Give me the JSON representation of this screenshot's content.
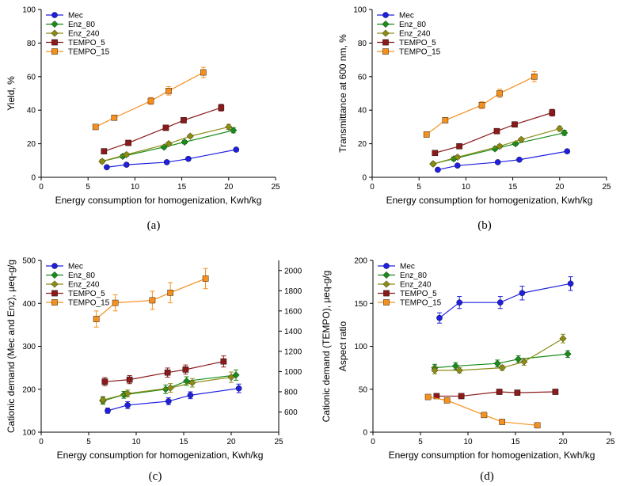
{
  "chart_data": [
    {
      "panel": "(a)",
      "type": "line",
      "xlabel": "Energy consumption for homogenization, Kwh/kg",
      "ylabel": "Yield, %",
      "xlim": [
        0,
        25
      ],
      "ylim": [
        0,
        100
      ],
      "xticks": [
        0,
        5,
        10,
        15,
        20,
        25
      ],
      "yticks": [
        0,
        20,
        40,
        60,
        80,
        100
      ],
      "legend_position": "top-left",
      "series": [
        {
          "name": "Mec",
          "color": "#1f1fe0",
          "marker": "circle",
          "x": [
            7.0,
            9.1,
            13.4,
            15.7,
            20.8
          ],
          "y": [
            6,
            7.5,
            9,
            11,
            16.5
          ],
          "err": [
            1,
            1,
            1,
            1,
            1
          ]
        },
        {
          "name": "Enz_80",
          "color": "#1a8c1a",
          "marker": "diamond",
          "x": [
            6.5,
            8.7,
            13.1,
            15.3,
            20.5
          ],
          "y": [
            9.5,
            12.5,
            18,
            21,
            28
          ],
          "err": [
            1,
            1,
            1,
            1,
            1.5
          ]
        },
        {
          "name": "Enz_240",
          "color": "#8c8c14",
          "marker": "diamond",
          "x": [
            6.5,
            9.1,
            13.6,
            15.9,
            20.0
          ],
          "y": [
            9.5,
            13.5,
            20,
            24.5,
            30
          ],
          "err": [
            1,
            1,
            1,
            1,
            1.5
          ]
        },
        {
          "name": "TEMPO_5",
          "color": "#8b1a1a",
          "marker": "square",
          "x": [
            6.7,
            9.3,
            13.3,
            15.2,
            19.2
          ],
          "y": [
            15.5,
            20.5,
            29.5,
            34,
            41.5
          ],
          "err": [
            1,
            1,
            1.5,
            1.5,
            2
          ]
        },
        {
          "name": "TEMPO_15",
          "color": "#f5901e",
          "marker": "square",
          "x": [
            5.8,
            7.8,
            11.7,
            13.6,
            17.3
          ],
          "y": [
            30,
            35.5,
            45.5,
            51.5,
            62.5
          ],
          "err": [
            1.5,
            1.5,
            2,
            2.5,
            3
          ]
        }
      ]
    },
    {
      "panel": "(b)",
      "type": "line",
      "xlabel": "Energy consumption for homogenization, Kwh/kg",
      "ylabel": "Transmittance at 600 nm, %",
      "xlim": [
        0,
        25
      ],
      "ylim": [
        0,
        100
      ],
      "xticks": [
        0,
        5,
        10,
        15,
        20,
        25
      ],
      "yticks": [
        0,
        20,
        40,
        60,
        80,
        100
      ],
      "legend_position": "top-left",
      "series": [
        {
          "name": "Mec",
          "color": "#1f1fe0",
          "marker": "circle",
          "x": [
            7.0,
            9.1,
            13.4,
            15.7,
            20.8
          ],
          "y": [
            4.5,
            7,
            9,
            10.5,
            15.5
          ],
          "err": [
            0.8,
            0.8,
            0.8,
            0.8,
            1
          ]
        },
        {
          "name": "Enz_80",
          "color": "#1a8c1a",
          "marker": "diamond",
          "x": [
            6.5,
            8.7,
            13.1,
            15.3,
            20.5
          ],
          "y": [
            8,
            11,
            17,
            20,
            26.5
          ],
          "err": [
            1,
            1,
            1,
            1,
            1.5
          ]
        },
        {
          "name": "Enz_240",
          "color": "#8c8c14",
          "marker": "diamond",
          "x": [
            6.5,
            9.1,
            13.6,
            15.9,
            20.0
          ],
          "y": [
            8,
            12,
            18.5,
            22.5,
            29
          ],
          "err": [
            1,
            1,
            1,
            1,
            1.5
          ]
        },
        {
          "name": "TEMPO_5",
          "color": "#8b1a1a",
          "marker": "square",
          "x": [
            6.7,
            9.3,
            13.3,
            15.2,
            19.2
          ],
          "y": [
            14.5,
            18.5,
            27.5,
            31.5,
            38.5
          ],
          "err": [
            1,
            1,
            1.5,
            1.5,
            2
          ]
        },
        {
          "name": "TEMPO_15",
          "color": "#f5901e",
          "marker": "square",
          "x": [
            5.8,
            7.8,
            11.7,
            13.6,
            17.3
          ],
          "y": [
            25.5,
            34,
            43,
            50,
            60
          ],
          "err": [
            1.5,
            1.5,
            2,
            2.5,
            3
          ]
        }
      ]
    },
    {
      "panel": "(c)",
      "type": "line",
      "xlabel": "Energy consumption for homogenization, Kwh/kg",
      "ylabel": "Cationic demand (Mec and Enz), µeq-g/g",
      "y2label": "Cationic demand (TEMPO), µeq-g/g",
      "xlim": [
        0,
        25
      ],
      "ylim": [
        100,
        500
      ],
      "y2lim": [
        400,
        2100
      ],
      "xticks": [
        0,
        5,
        10,
        15,
        20,
        25
      ],
      "yticks": [
        100,
        200,
        300,
        400,
        500
      ],
      "y2ticks": [
        600,
        800,
        1000,
        1200,
        1400,
        1600,
        1800,
        2000
      ],
      "legend_position": "top-left",
      "series": [
        {
          "name": "Mec",
          "color": "#1f1fe0",
          "marker": "circle",
          "axis": "left",
          "x": [
            7.0,
            9.1,
            13.4,
            15.7,
            20.8
          ],
          "y": [
            150,
            163,
            172,
            186,
            202
          ],
          "err": [
            6,
            8,
            8,
            8,
            10
          ]
        },
        {
          "name": "Enz_80",
          "color": "#1a8c1a",
          "marker": "diamond",
          "axis": "left",
          "x": [
            6.5,
            8.7,
            13.1,
            15.3,
            20.5
          ],
          "y": [
            173,
            187,
            200,
            219,
            233
          ],
          "err": [
            8,
            8,
            10,
            10,
            12
          ]
        },
        {
          "name": "Enz_240",
          "color": "#8c8c14",
          "marker": "diamond",
          "axis": "left",
          "x": [
            6.5,
            9.1,
            13.6,
            15.9,
            20.0
          ],
          "y": [
            175,
            190,
            203,
            215,
            228
          ],
          "err": [
            8,
            8,
            10,
            10,
            12
          ]
        },
        {
          "name": "TEMPO_5",
          "color": "#8b1a1a",
          "marker": "square",
          "axis": "right",
          "x": [
            6.7,
            9.3,
            13.3,
            15.2,
            19.2
          ],
          "y": [
            900,
            920,
            990,
            1020,
            1100
          ],
          "err": [
            40,
            40,
            45,
            45,
            55
          ]
        },
        {
          "name": "TEMPO_15",
          "color": "#f5901e",
          "marker": "square",
          "axis": "right",
          "x": [
            5.8,
            7.8,
            11.7,
            13.6,
            17.3
          ],
          "y": [
            1520,
            1680,
            1705,
            1780,
            1920
          ],
          "err": [
            80,
            80,
            90,
            100,
            100
          ]
        }
      ]
    },
    {
      "panel": "(d)",
      "type": "line",
      "xlabel": "Energy consumption for homogenization, Kwh/kg",
      "ylabel": "Aspect ratio",
      "xlim": [
        0,
        25
      ],
      "ylim": [
        0,
        200
      ],
      "xticks": [
        0,
        5,
        10,
        15,
        20,
        25
      ],
      "yticks": [
        0,
        50,
        100,
        150,
        200
      ],
      "legend_position": "top-left",
      "series": [
        {
          "name": "Mec",
          "color": "#1f1fe0",
          "marker": "circle",
          "x": [
            7.0,
            9.1,
            13.4,
            15.7,
            20.8
          ],
          "y": [
            133,
            151,
            151,
            162,
            173
          ],
          "err": [
            6,
            7,
            7,
            8,
            8
          ]
        },
        {
          "name": "Enz_80",
          "color": "#1a8c1a",
          "marker": "diamond",
          "x": [
            6.5,
            8.7,
            13.1,
            15.3,
            20.5
          ],
          "y": [
            75,
            77,
            80,
            85,
            91
          ],
          "err": [
            4,
            4,
            4,
            4,
            4
          ]
        },
        {
          "name": "Enz_240",
          "color": "#8c8c14",
          "marker": "diamond",
          "x": [
            6.5,
            9.1,
            13.6,
            15.9,
            20.0
          ],
          "y": [
            72,
            72,
            75,
            82,
            109
          ],
          "err": [
            4,
            3,
            3,
            4,
            5
          ]
        },
        {
          "name": "TEMPO_5",
          "color": "#8b1a1a",
          "marker": "square",
          "x": [
            6.7,
            9.3,
            13.3,
            15.2,
            19.2
          ],
          "y": [
            42,
            42,
            47,
            46,
            47
          ],
          "err": [
            1,
            1,
            1,
            1,
            1
          ]
        },
        {
          "name": "TEMPO_15",
          "color": "#f5901e",
          "marker": "square",
          "x": [
            5.8,
            7.8,
            11.7,
            13.6,
            17.3
          ],
          "y": [
            41,
            37,
            20,
            12,
            8
          ],
          "err": [
            1,
            1,
            1,
            1,
            1
          ]
        }
      ]
    }
  ]
}
